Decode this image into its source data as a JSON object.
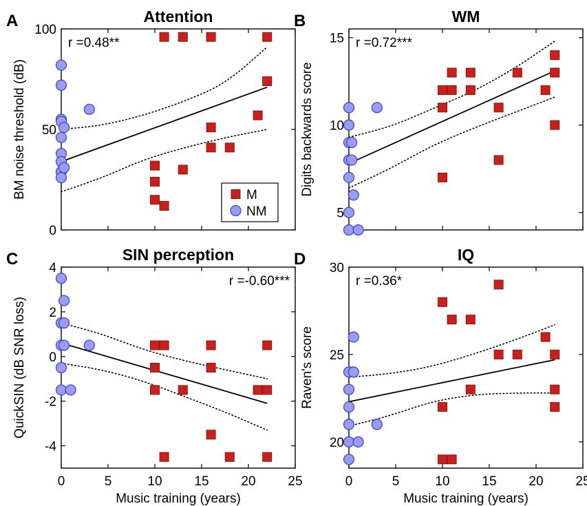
{
  "colors": {
    "musician": "#c8201c",
    "musician_edge": "#8a1512",
    "nonmusician": "#9a9cf4",
    "nonmusician_edge": "#3a3fc0"
  },
  "chart_data": [
    {
      "type": "scatter",
      "letter": "A",
      "title": "Attention",
      "xlabel": "",
      "ylabel": "BM noise threshold (dB)",
      "xlim": [
        0,
        25
      ],
      "ylim": [
        0,
        100
      ],
      "xticks": [],
      "yticks": [
        0,
        50,
        100
      ],
      "annotation": "r =0.48**",
      "annotation_pos": "top-left",
      "legend": {
        "position": "bottom-right",
        "entries": [
          {
            "label": "M",
            "marker": "square"
          },
          {
            "label": "NM",
            "marker": "circle"
          }
        ]
      },
      "fit": {
        "y_at_xmin": 34,
        "y_at_xmax": 71,
        "x_range": [
          0,
          22
        ],
        "ci_upper": [
          50,
          52,
          57,
          64,
          73,
          91
        ],
        "ci_lower": [
          19,
          26,
          35,
          41,
          46,
          50
        ]
      },
      "series": [
        {
          "name": "M",
          "marker": "square",
          "points": [
            [
              10,
              32
            ],
            [
              10,
              24
            ],
            [
              10,
              15
            ],
            [
              11,
              12
            ],
            [
              11,
              96
            ],
            [
              13,
              96
            ],
            [
              13,
              30
            ],
            [
              16,
              96
            ],
            [
              16,
              51
            ],
            [
              16,
              41
            ],
            [
              18,
              41
            ],
            [
              21,
              57
            ],
            [
              22,
              96
            ],
            [
              22,
              74
            ]
          ]
        },
        {
          "name": "NM",
          "marker": "circle",
          "points": [
            [
              0,
              82
            ],
            [
              0,
              72
            ],
            [
              0,
              55
            ],
            [
              0,
              54
            ],
            [
              0,
              46
            ],
            [
              0,
              38
            ],
            [
              0,
              34
            ],
            [
              0,
              29
            ],
            [
              0,
              26
            ],
            [
              0.3,
              51
            ],
            [
              0.3,
              31
            ],
            [
              3,
              60
            ]
          ]
        }
      ]
    },
    {
      "type": "scatter",
      "letter": "B",
      "title": "WM",
      "xlabel": "",
      "ylabel": "Digits backwards score",
      "xlim": [
        0,
        25
      ],
      "ylim": [
        4,
        15.5
      ],
      "xticks": [],
      "yticks": [
        5,
        10,
        15
      ],
      "annotation": "r =0.72***",
      "annotation_pos": "top-left",
      "fit": {
        "y_at_xmin": 7.8,
        "y_at_xmax": 13.1,
        "x_range": [
          0,
          22
        ],
        "ci_upper": [
          9.3,
          9.9,
          10.9,
          11.9,
          13.2,
          14.8
        ],
        "ci_lower": [
          6.4,
          7.5,
          8.8,
          9.8,
          10.7,
          11.6
        ]
      },
      "series": [
        {
          "name": "M",
          "marker": "square",
          "points": [
            [
              10,
              12
            ],
            [
              10,
              11
            ],
            [
              10,
              7
            ],
            [
              11,
              13
            ],
            [
              11,
              12
            ],
            [
              13,
              13
            ],
            [
              13,
              12
            ],
            [
              16,
              11
            ],
            [
              16,
              8
            ],
            [
              18,
              13
            ],
            [
              21,
              12
            ],
            [
              22,
              14
            ],
            [
              22,
              13
            ],
            [
              22,
              10
            ]
          ]
        },
        {
          "name": "NM",
          "marker": "circle",
          "points": [
            [
              0,
              11
            ],
            [
              0,
              10
            ],
            [
              0,
              9
            ],
            [
              0,
              8
            ],
            [
              0,
              7
            ],
            [
              0,
              5
            ],
            [
              0,
              4
            ],
            [
              0.3,
              9
            ],
            [
              0.3,
              8
            ],
            [
              0.5,
              6
            ],
            [
              1,
              4
            ],
            [
              3,
              11
            ]
          ]
        }
      ]
    },
    {
      "type": "scatter",
      "letter": "C",
      "title": "SIN perception",
      "xlabel": "Music training (years)",
      "ylabel": "QuickSIN (dB SNR loss)",
      "xlim": [
        0,
        25
      ],
      "ylim": [
        -5,
        4
      ],
      "xticks": [
        0,
        5,
        10,
        15,
        20,
        25
      ],
      "yticks": [
        -4,
        -2,
        0,
        2,
        4
      ],
      "annotation": "r =-0.60***",
      "annotation_pos": "top-right",
      "fit": {
        "y_at_xmin": 0.6,
        "y_at_xmax": -2.1,
        "x_range": [
          0,
          22
        ],
        "ci_upper": [
          1.5,
          1.0,
          0.3,
          -0.2,
          -0.6,
          -1.0
        ],
        "ci_lower": [
          -0.3,
          -0.6,
          -1.1,
          -1.8,
          -2.5,
          -3.3
        ]
      },
      "series": [
        {
          "name": "M",
          "marker": "square",
          "points": [
            [
              10,
              0.5
            ],
            [
              10,
              -0.5
            ],
            [
              10,
              -1.5
            ],
            [
              11,
              0.5
            ],
            [
              11,
              -4.5
            ],
            [
              13,
              -1.5
            ],
            [
              16,
              0.5
            ],
            [
              16,
              -0.5
            ],
            [
              16,
              -3.5
            ],
            [
              18,
              -4.5
            ],
            [
              21,
              -1.5
            ],
            [
              22,
              0.5
            ],
            [
              22,
              -1.5
            ],
            [
              22,
              -4.5
            ]
          ]
        },
        {
          "name": "NM",
          "marker": "circle",
          "points": [
            [
              0,
              3.5
            ],
            [
              0,
              1.5
            ],
            [
              0,
              0.5
            ],
            [
              0,
              -0.5
            ],
            [
              0,
              -1.5
            ],
            [
              0.3,
              2.5
            ],
            [
              0.3,
              1.5
            ],
            [
              0.3,
              0.5
            ],
            [
              1,
              -1.5
            ],
            [
              3,
              0.5
            ]
          ]
        }
      ]
    },
    {
      "type": "scatter",
      "letter": "D",
      "title": "IQ",
      "xlabel": "Music training (years)",
      "ylabel": "Raven's score",
      "xlim": [
        0,
        25
      ],
      "ylim": [
        18.5,
        30
      ],
      "xticks": [
        0,
        5,
        10,
        15,
        20,
        25
      ],
      "yticks": [
        20,
        25,
        30
      ],
      "annotation": "r =0.36*",
      "annotation_pos": "top-left",
      "fit": {
        "y_at_xmin": 22.3,
        "y_at_xmax": 24.7,
        "x_range": [
          0,
          22
        ],
        "ci_upper": [
          23.7,
          23.9,
          24.3,
          25.0,
          25.8,
          26.7
        ],
        "ci_lower": [
          20.9,
          21.5,
          22.3,
          22.7,
          22.8,
          22.8
        ]
      },
      "series": [
        {
          "name": "M",
          "marker": "square",
          "points": [
            [
              10,
              28
            ],
            [
              10,
              22
            ],
            [
              10,
              19
            ],
            [
              11,
              27
            ],
            [
              11,
              19
            ],
            [
              13,
              27
            ],
            [
              13,
              23
            ],
            [
              16,
              29
            ],
            [
              16,
              25
            ],
            [
              18,
              25
            ],
            [
              21,
              26
            ],
            [
              22,
              25
            ],
            [
              22,
              23
            ],
            [
              22,
              22
            ]
          ]
        },
        {
          "name": "NM",
          "marker": "circle",
          "points": [
            [
              0,
              24
            ],
            [
              0,
              23
            ],
            [
              0,
              22
            ],
            [
              0,
              21
            ],
            [
              0,
              20
            ],
            [
              0,
              19
            ],
            [
              0.5,
              26
            ],
            [
              0.5,
              24
            ],
            [
              1,
              20
            ],
            [
              3,
              21
            ]
          ]
        }
      ]
    }
  ]
}
